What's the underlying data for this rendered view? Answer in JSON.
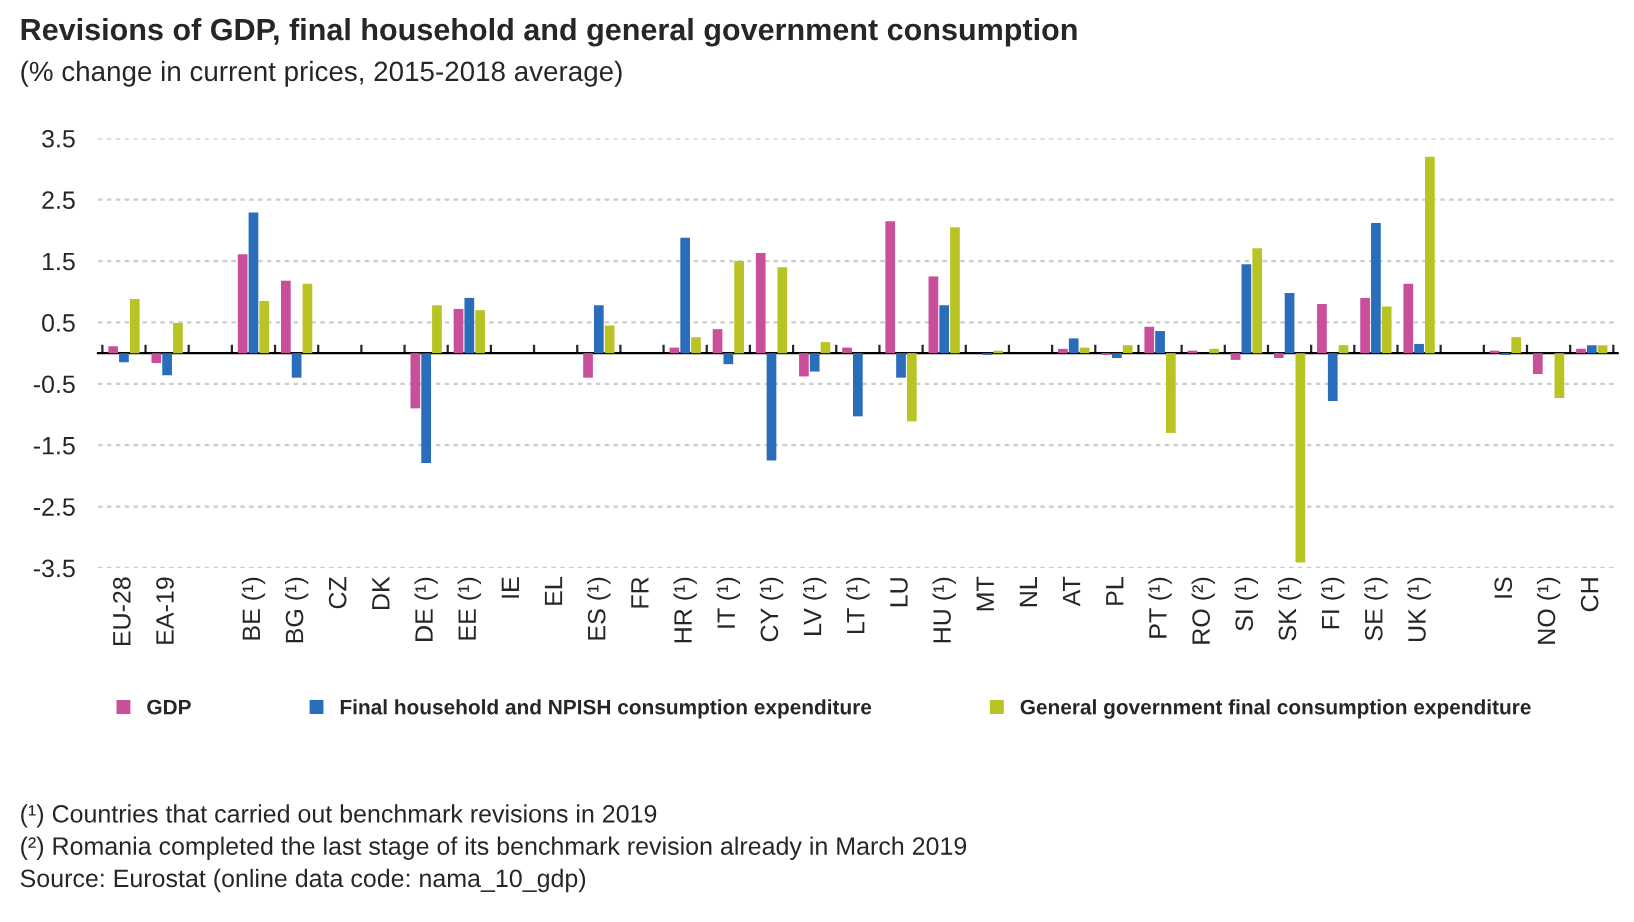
{
  "chart_data": {
    "type": "bar",
    "title": "Revisions of GDP, final household and general government consumption",
    "subtitle": "(% change in current prices, 2015-2018 average)",
    "categories": [
      "EU-28",
      "EA-19",
      null,
      "BE (¹)",
      "BG (¹)",
      "CZ",
      "DK",
      "DE (¹)",
      "EE (¹)",
      "IE",
      "EL",
      "ES (¹)",
      "FR",
      "HR (¹)",
      "IT (¹)",
      "CY (¹)",
      "LV (¹)",
      "LT (¹)",
      "LU",
      "HU (¹)",
      "MT",
      "NL",
      "AT",
      "PL",
      "PT (¹)",
      "RO (²)",
      "SI (¹)",
      "SK (¹)",
      "FI (¹)",
      "SE (¹)",
      "UK (¹)",
      null,
      "IS",
      "NO (¹)",
      "CH"
    ],
    "series": [
      {
        "name": "GDP",
        "color": "#c94f9b",
        "values": [
          0.11,
          -0.16,
          null,
          1.61,
          1.18,
          null,
          null,
          -0.9,
          0.72,
          null,
          null,
          -0.4,
          null,
          0.09,
          0.39,
          1.63,
          -0.38,
          0.09,
          2.15,
          1.25,
          null,
          null,
          0.07,
          -0.03,
          0.43,
          0.04,
          -0.11,
          -0.08,
          0.8,
          0.9,
          1.13,
          null,
          0.04,
          -0.34,
          0.07
        ]
      },
      {
        "name": "Final household and NPISH consumption expenditure",
        "color": "#2a6ebb",
        "values": [
          -0.15,
          -0.36,
          null,
          2.29,
          -0.4,
          null,
          null,
          -1.79,
          0.9,
          null,
          null,
          0.78,
          null,
          1.88,
          -0.18,
          -1.75,
          -0.3,
          -1.03,
          -0.4,
          0.78,
          -0.03,
          null,
          0.24,
          -0.08,
          0.36,
          null,
          1.45,
          0.98,
          -0.78,
          2.12,
          0.15,
          null,
          -0.03,
          null,
          0.13
        ]
      },
      {
        "name": "General government final consumption expenditure",
        "color": "#b9c424",
        "values": [
          0.88,
          0.49,
          null,
          0.85,
          1.13,
          null,
          null,
          0.78,
          0.7,
          null,
          null,
          0.45,
          null,
          0.26,
          1.5,
          1.4,
          0.18,
          null,
          -1.11,
          2.05,
          0.04,
          null,
          0.09,
          0.13,
          -1.3,
          0.07,
          1.71,
          -3.41,
          0.13,
          0.76,
          3.2,
          null,
          0.26,
          -0.73,
          0.13
        ]
      }
    ],
    "ylim": [
      -3.5,
      3.5
    ],
    "yticks": [
      3.5,
      2.5,
      1.5,
      0.5,
      -0.5,
      -1.5,
      -2.5,
      -3.5
    ],
    "grid": "y",
    "legend": "bottom",
    "annotations": [
      "(¹) Countries that carried out benchmark revisions in 2019",
      "(²) Romania completed the last stage of its benchmark revision already in March 2019",
      "Source: Eurostat (online data code: nama_10_gdp)"
    ]
  }
}
